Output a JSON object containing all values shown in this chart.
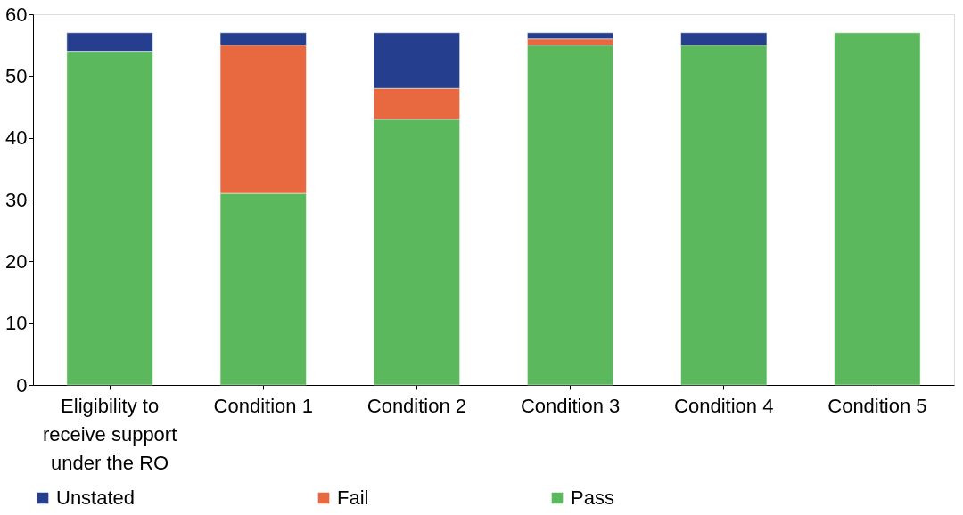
{
  "chart_data": {
    "type": "bar",
    "stacked": true,
    "categories": [
      "Eligibility to receive support under the RO",
      "Condition 1",
      "Condition 2",
      "Condition 3",
      "Condition 4",
      "Condition 5"
    ],
    "series": [
      {
        "name": "Pass",
        "color": "#5cb85c",
        "values": [
          54,
          31,
          43,
          55,
          55,
          57
        ]
      },
      {
        "name": "Fail",
        "color": "#e8693f",
        "values": [
          0,
          24,
          5,
          1,
          0,
          0
        ]
      },
      {
        "name": "Unstated",
        "color": "#253f8e",
        "values": [
          3,
          2,
          9,
          1,
          2,
          0
        ]
      }
    ],
    "ylim": [
      0,
      60
    ],
    "yticks": [
      0,
      10,
      20,
      30,
      40,
      50,
      60
    ],
    "grid": false,
    "legend": "bottom"
  }
}
